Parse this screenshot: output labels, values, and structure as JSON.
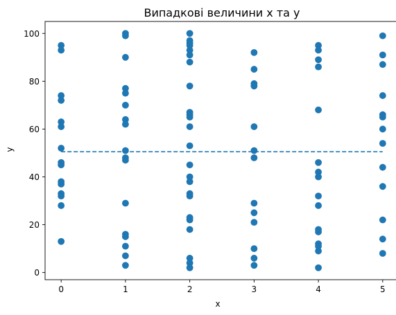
{
  "chart_data": {
    "type": "scatter",
    "title": "Випадкові величини x та y",
    "xlabel": "x",
    "ylabel": "y",
    "xlim": [
      -0.25,
      5.25
    ],
    "ylim": [
      -3,
      105
    ],
    "xticks": [
      "0",
      "1",
      "2",
      "3",
      "4",
      "5"
    ],
    "yticks": [
      "0",
      "20",
      "40",
      "60",
      "80",
      "100"
    ],
    "grid": false,
    "series_color": "#1f77b4",
    "mean_line": {
      "y": 50.5,
      "x_range": [
        0,
        5
      ],
      "style": "dashed",
      "color": "#1f77b4"
    },
    "points": [
      [
        0,
        95
      ],
      [
        0,
        93
      ],
      [
        0,
        74
      ],
      [
        0,
        72
      ],
      [
        0,
        63
      ],
      [
        0,
        61
      ],
      [
        0,
        52
      ],
      [
        0,
        46
      ],
      [
        0,
        45
      ],
      [
        0,
        38
      ],
      [
        0,
        37
      ],
      [
        0,
        33
      ],
      [
        0,
        32
      ],
      [
        0,
        28
      ],
      [
        0,
        13
      ],
      [
        1,
        100
      ],
      [
        1,
        99
      ],
      [
        1,
        90
      ],
      [
        1,
        77
      ],
      [
        1,
        75
      ],
      [
        1,
        70
      ],
      [
        1,
        64
      ],
      [
        1,
        62
      ],
      [
        1,
        51
      ],
      [
        1,
        48
      ],
      [
        1,
        47
      ],
      [
        1,
        29
      ],
      [
        1,
        16
      ],
      [
        1,
        15
      ],
      [
        1,
        11
      ],
      [
        1,
        7
      ],
      [
        1,
        3
      ],
      [
        2,
        100
      ],
      [
        2,
        97
      ],
      [
        2,
        96
      ],
      [
        2,
        95
      ],
      [
        2,
        93
      ],
      [
        2,
        91
      ],
      [
        2,
        88
      ],
      [
        2,
        78
      ],
      [
        2,
        67
      ],
      [
        2,
        66
      ],
      [
        2,
        65
      ],
      [
        2,
        61
      ],
      [
        2,
        53
      ],
      [
        2,
        45
      ],
      [
        2,
        40
      ],
      [
        2,
        38
      ],
      [
        2,
        33
      ],
      [
        2,
        32
      ],
      [
        2,
        23
      ],
      [
        2,
        22
      ],
      [
        2,
        18
      ],
      [
        2,
        6
      ],
      [
        2,
        4
      ],
      [
        2,
        2
      ],
      [
        3,
        92
      ],
      [
        3,
        85
      ],
      [
        3,
        79
      ],
      [
        3,
        78
      ],
      [
        3,
        61
      ],
      [
        3,
        51
      ],
      [
        3,
        48
      ],
      [
        3,
        29
      ],
      [
        3,
        25
      ],
      [
        3,
        21
      ],
      [
        3,
        10
      ],
      [
        3,
        6
      ],
      [
        3,
        3
      ],
      [
        4,
        95
      ],
      [
        4,
        93
      ],
      [
        4,
        89
      ],
      [
        4,
        86
      ],
      [
        4,
        68
      ],
      [
        4,
        46
      ],
      [
        4,
        42
      ],
      [
        4,
        40
      ],
      [
        4,
        32
      ],
      [
        4,
        28
      ],
      [
        4,
        18
      ],
      [
        4,
        17
      ],
      [
        4,
        12
      ],
      [
        4,
        11
      ],
      [
        4,
        9
      ],
      [
        4,
        2
      ],
      [
        5,
        99
      ],
      [
        5,
        91
      ],
      [
        5,
        87
      ],
      [
        5,
        74
      ],
      [
        5,
        66
      ],
      [
        5,
        65
      ],
      [
        5,
        60
      ],
      [
        5,
        54
      ],
      [
        5,
        44
      ],
      [
        5,
        36
      ],
      [
        5,
        22
      ],
      [
        5,
        14
      ],
      [
        5,
        8
      ]
    ]
  }
}
